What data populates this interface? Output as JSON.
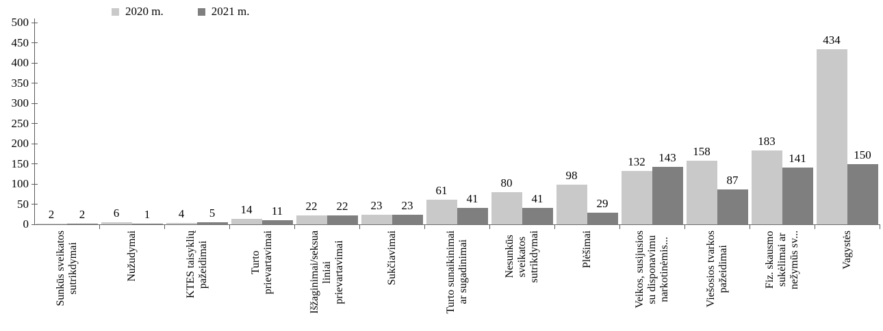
{
  "chart_data": {
    "type": "bar",
    "categories": [
      "Sunkūs sveikatos\nsutrikdymai",
      "Nužudymai",
      "KTES taisyklių\npažeidimai",
      "Turto\nprievartavimai",
      "Išžaginimai/seksua\nliniai\nprievartavimai",
      "Sukčiavimai",
      "Turto sunaikinimai\nar sugadinimai",
      "Nesunkūs\nsveikatos\nsutrikdymai",
      "Plėšimai",
      "Veikos, susijusios\nsu disponavimu\nnarkotinėmis...",
      "Viešosios tvarkos\npažeidimai",
      "Fiz. skausmo\nsukėlimai ar\nnežymūs sv...",
      "Vagystės"
    ],
    "series": [
      {
        "name": "2020 m.",
        "color": "#c9c9c9",
        "values": [
          2,
          6,
          4,
          14,
          22,
          23,
          61,
          80,
          98,
          132,
          158,
          183,
          434
        ]
      },
      {
        "name": "2021 m.",
        "color": "#7f7f7f",
        "values": [
          2,
          1,
          5,
          11,
          22,
          23,
          41,
          41,
          29,
          143,
          87,
          141,
          150
        ]
      }
    ],
    "ylim": [
      0,
      500
    ],
    "ytick_step": 50,
    "ytick_labels": [
      "500",
      "450",
      "400",
      "350",
      "300",
      "250",
      "200",
      "150",
      "100",
      "50",
      "0"
    ],
    "grid": false,
    "legend_position": "top-left",
    "data_labels": true
  },
  "colors": {
    "axis": "#595959",
    "text": "#000000",
    "background": "#ffffff",
    "series_2020": "#c9c9c9",
    "series_2021": "#7f7f7f"
  }
}
